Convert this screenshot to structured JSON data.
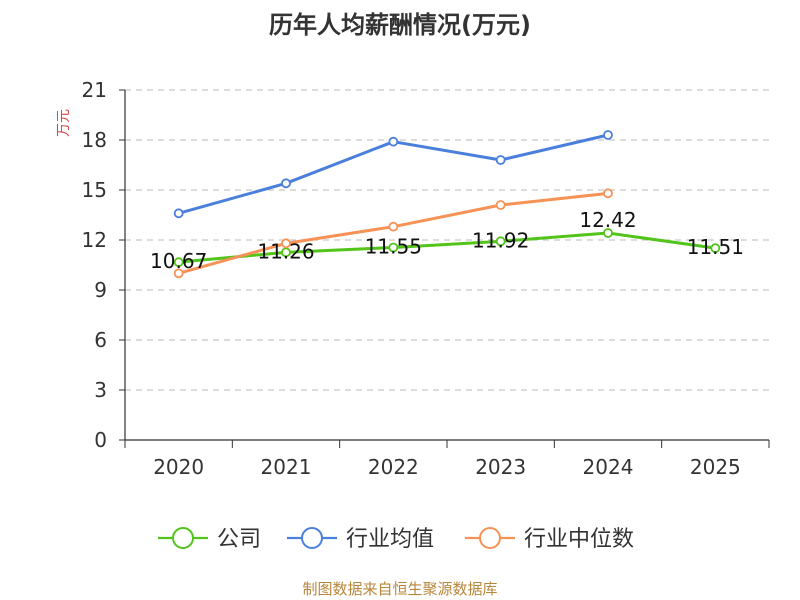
{
  "chart_data": {
    "type": "line",
    "title": "历年人均薪酬情况(万元)",
    "ylabel": "万元",
    "xlabel": "",
    "categories": [
      "2020",
      "2021",
      "2022",
      "2023",
      "2024",
      "2025"
    ],
    "ylim": [
      0,
      21
    ],
    "yticks": [
      0,
      3,
      6,
      9,
      12,
      15,
      18,
      21
    ],
    "grid": true,
    "legend_position": "bottom",
    "series": [
      {
        "name": "公司",
        "color": "#52c41a",
        "values": [
          10.67,
          11.26,
          11.55,
          11.92,
          12.42,
          11.51
        ],
        "labels": [
          "10.67",
          "11.26",
          "11.55",
          "11.92",
          "12.42",
          "11.51"
        ]
      },
      {
        "name": "行业均值",
        "color": "#4a7fdb",
        "values": [
          13.6,
          15.4,
          17.9,
          16.8,
          18.3,
          null
        ]
      },
      {
        "name": "行业中位数",
        "color": "#f79256",
        "values": [
          10.0,
          11.8,
          12.8,
          14.1,
          14.8,
          null
        ]
      }
    ],
    "source": "制图数据来自恒生聚源数据库"
  }
}
